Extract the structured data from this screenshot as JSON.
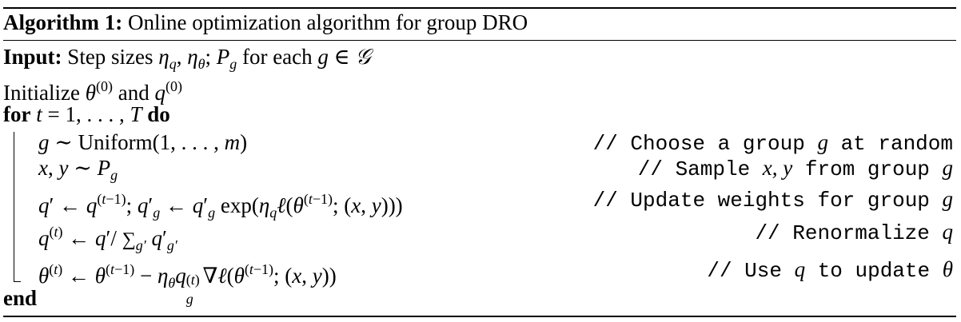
{
  "algorithm": {
    "label": "Algorithm 1:",
    "title": "Online optimization algorithm for group DRO"
  },
  "input": {
    "label": "Input:",
    "text_a": "Step sizes ",
    "text_b": " for each "
  },
  "init": {
    "text_a": "Initialize ",
    "text_b": " and "
  },
  "loop": {
    "for_kw": "for",
    "do_kw": "do",
    "end_kw": "end"
  },
  "steps": [
    {
      "comment": "// Choose a group g at random"
    },
    {
      "comment": "// Sample x,y from group g"
    },
    {
      "comment": "// Update weights for group g"
    },
    {
      "comment": "// Renormalize q"
    },
    {
      "comment": "// Use q to update θ"
    }
  ],
  "comments_parts": {
    "c1a": "// Choose a group ",
    "c1b": " at random",
    "c2a": "// Sample ",
    "c2b": " from group ",
    "c3a": "// Update weights for group ",
    "c4a": "// Renormalize ",
    "c5a": "// Use ",
    "c5b": " to update "
  },
  "text_pieces": {
    "uniform": "Uniform",
    "exp": "exp"
  }
}
